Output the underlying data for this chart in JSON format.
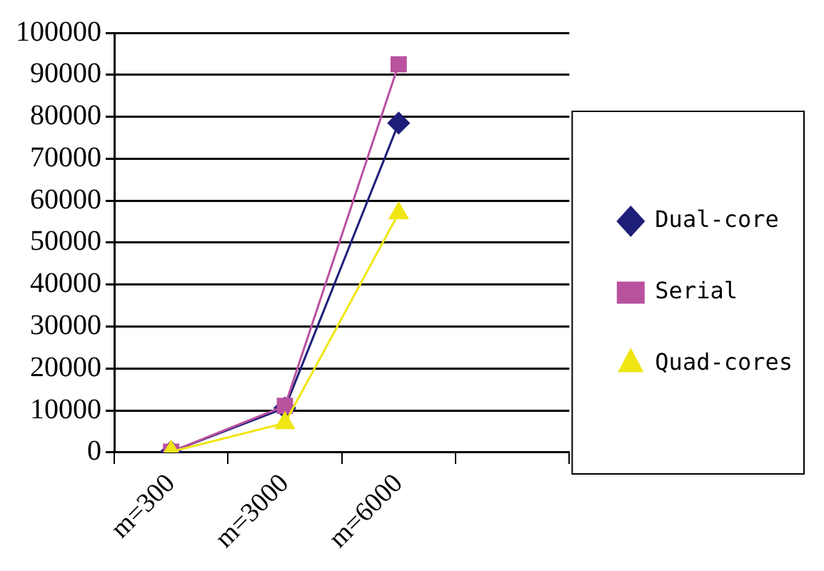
{
  "chart_data": {
    "type": "line",
    "categories": [
      "m=300",
      "m=3000",
      "m=6000",
      null
    ],
    "series": [
      {
        "name": "Dual-core",
        "color": "#1f1f7a",
        "values": [
          200,
          10600,
          78500,
          null
        ],
        "marker": "diamond"
      },
      {
        "name": "Serial",
        "color": "#b9529f",
        "values": [
          200,
          11100,
          92500,
          null
        ],
        "marker": "square"
      },
      {
        "name": "Quad-cores",
        "color": "#f0e614",
        "values": [
          200,
          7000,
          57000,
          null
        ],
        "marker": "triangle"
      }
    ],
    "ylim": [
      0,
      100000
    ],
    "yticks": [
      0,
      10000,
      20000,
      30000,
      40000,
      50000,
      60000,
      70000,
      80000,
      90000,
      100000
    ],
    "grid": "y",
    "legend": "right",
    "line_style": "solid"
  }
}
